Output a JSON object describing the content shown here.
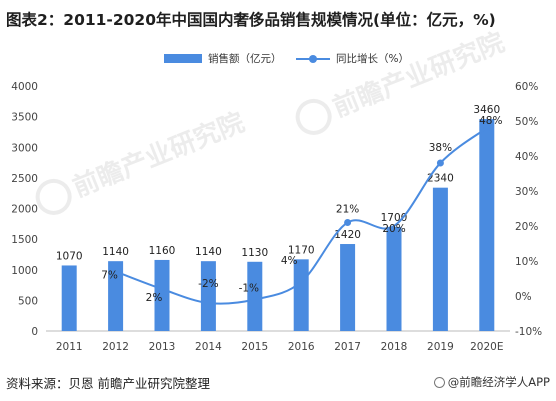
{
  "title": "图表2：2011-2020年中国国内奢侈品销售规模情况(单位：亿元，%)",
  "source": "资料来源：贝恩 前瞻产业研究院整理",
  "credit": "@前瞻经济学人APP",
  "watermark": "前瞻产业研究院",
  "colors": {
    "bar": "#4a8be0",
    "line": "#4a8be0",
    "grid": "#e6e6e6",
    "axis_text": "#444444"
  },
  "chart_data": {
    "type": "bar",
    "categories": [
      "2011",
      "2012",
      "2013",
      "2014",
      "2015",
      "2016",
      "2017",
      "2018",
      "2019",
      "2020E"
    ],
    "series": [
      {
        "name": "销售额（亿元）",
        "type": "bar",
        "axis": "left",
        "values": [
          1070,
          1140,
          1160,
          1140,
          1130,
          1170,
          1420,
          1700,
          2340,
          3460
        ]
      },
      {
        "name": "同比增长（%）",
        "type": "line",
        "axis": "right",
        "values": [
          null,
          7,
          2,
          -2,
          -1,
          4,
          21,
          20,
          38,
          48
        ]
      }
    ],
    "y_left": {
      "ylim": [
        0,
        4000
      ],
      "ticks": [
        0,
        500,
        1000,
        1500,
        2000,
        2500,
        3000,
        3500,
        4000
      ]
    },
    "y_right": {
      "ylim": [
        -10,
        60
      ],
      "ticks": [
        "-10%",
        "0%",
        "10%",
        "20%",
        "30%",
        "40%",
        "50%",
        "60%"
      ]
    },
    "bar_labels": [
      "1070",
      "1140",
      "1160",
      "1140",
      "1130",
      "1170",
      "1420",
      "1700",
      "2340",
      "3460"
    ],
    "line_labels": [
      "",
      "7%",
      "2%",
      "-2%",
      "-1%",
      "4%",
      "21%",
      "20%",
      "38%",
      "48%"
    ],
    "legend_position": "top-center",
    "grid": false
  }
}
